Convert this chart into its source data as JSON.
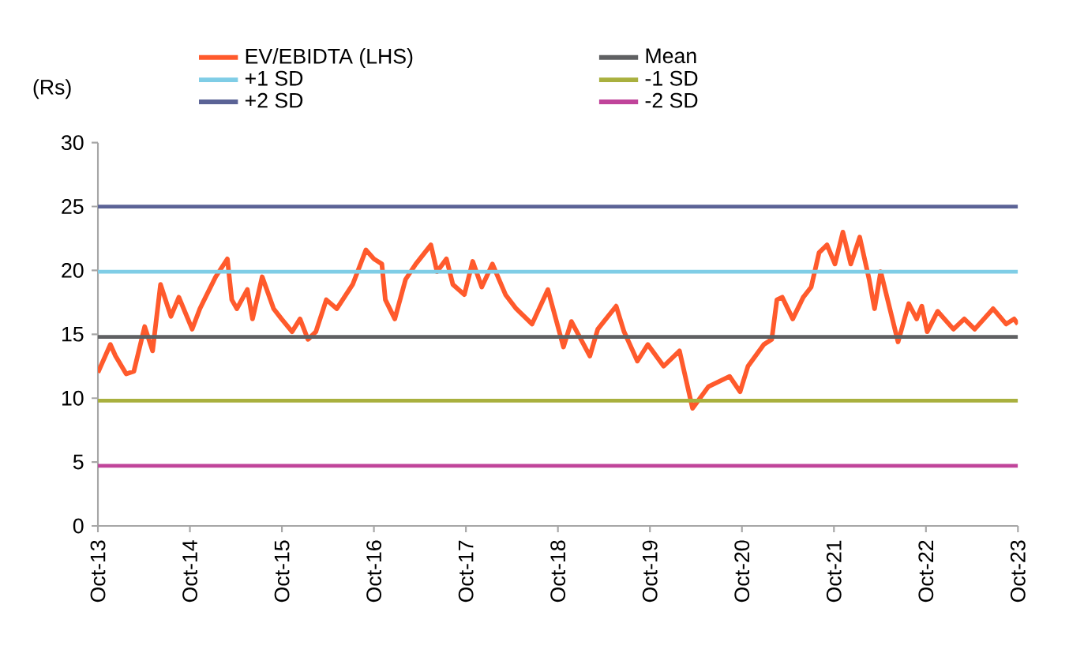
{
  "chart_data": {
    "type": "line",
    "ylabel": "(Rs)",
    "xlim": [
      "2013-10-01",
      "2023-10-01"
    ],
    "xticks": [
      {
        "value": "2013-10",
        "label": "Oct-13"
      },
      {
        "value": "2014-10",
        "label": "Oct-14"
      },
      {
        "value": "2015-10",
        "label": "Oct-15"
      },
      {
        "value": "2016-10",
        "label": "Oct-16"
      },
      {
        "value": "2017-10",
        "label": "Oct-17"
      },
      {
        "value": "2018-10",
        "label": "Oct-18"
      },
      {
        "value": "2019-10",
        "label": "Oct-19"
      },
      {
        "value": "2020-10",
        "label": "Oct-20"
      },
      {
        "value": "2021-10",
        "label": "Oct-21"
      },
      {
        "value": "2022-10",
        "label": "Oct-22"
      },
      {
        "value": "2023-10",
        "label": "Oct-23"
      }
    ],
    "ylim": [
      0,
      30
    ],
    "yticks": [
      0,
      5,
      10,
      15,
      20,
      25,
      30
    ],
    "legend": "top",
    "marker": "none",
    "line_style": "solid",
    "series": [
      {
        "name": "EV/EBIDTA (LHS)",
        "color": "#ff5a2c",
        "x": [
          "2013-10-01",
          "2013-11-20",
          "2013-12-10",
          "2014-01-22",
          "2014-02-22",
          "2014-04-04",
          "2014-05-05",
          "2014-06-06",
          "2014-07-17",
          "2014-08-18",
          "2014-10-10",
          "2014-11-10",
          "2015-01-12",
          "2015-02-28",
          "2015-03-15",
          "2015-04-05",
          "2015-05-16",
          "2015-06-06",
          "2015-07-14",
          "2015-08-29",
          "2015-09-30",
          "2015-11-11",
          "2015-12-12",
          "2016-01-13",
          "2016-02-14",
          "2016-03-25",
          "2016-05-06",
          "2016-07-08",
          "2016-08-30",
          "2016-10-01",
          "2016-11-02",
          "2016-11-16",
          "2016-12-23",
          "2017-02-05",
          "2017-03-15",
          "2017-05-14",
          "2017-06-08",
          "2017-07-15",
          "2017-08-10",
          "2017-09-25",
          "2017-10-28",
          "2017-12-03",
          "2018-01-15",
          "2018-03-06",
          "2018-04-18",
          "2018-06-20",
          "2018-08-22",
          "2018-10-23",
          "2018-11-24",
          "2019-02-06",
          "2019-03-07",
          "2019-05-19",
          "2019-06-20",
          "2019-08-12",
          "2019-09-23",
          "2019-11-25",
          "2020-01-27",
          "2020-03-18",
          "2020-05-20",
          "2020-08-13",
          "2020-09-24",
          "2020-10-25",
          "2020-12-27",
          "2021-01-28",
          "2021-02-18",
          "2021-03-09",
          "2021-04-20",
          "2021-06-01",
          "2021-07-02",
          "2021-08-03",
          "2021-09-04",
          "2021-10-05",
          "2021-11-06",
          "2021-12-07",
          "2022-01-12",
          "2022-02-19",
          "2022-03-10",
          "2022-04-04",
          "2022-06-12",
          "2022-07-24",
          "2022-08-25",
          "2022-09-15",
          "2022-10-06",
          "2022-11-17",
          "2023-01-19",
          "2023-03-01",
          "2023-04-12",
          "2023-06-24",
          "2023-08-15",
          "2023-09-16",
          "2023-10-01"
        ],
        "values": [
          12.0,
          14.2,
          13.3,
          11.9,
          12.1,
          15.6,
          13.7,
          18.9,
          16.4,
          17.9,
          15.4,
          17.0,
          19.5,
          20.9,
          17.7,
          17.0,
          18.5,
          16.2,
          19.5,
          17.0,
          16.2,
          15.2,
          16.2,
          14.6,
          15.2,
          17.7,
          17.0,
          18.9,
          21.6,
          20.9,
          20.5,
          17.7,
          16.2,
          19.3,
          20.5,
          22.0,
          19.9,
          20.9,
          18.9,
          18.1,
          20.7,
          18.7,
          20.5,
          18.1,
          17.0,
          15.8,
          18.5,
          14.0,
          16.0,
          13.3,
          15.4,
          17.2,
          15.2,
          12.9,
          14.2,
          12.5,
          13.7,
          9.2,
          10.9,
          11.7,
          10.5,
          12.5,
          14.2,
          14.6,
          17.7,
          17.9,
          16.2,
          17.9,
          18.7,
          21.4,
          22.0,
          20.5,
          23.0,
          20.5,
          22.6,
          19.3,
          17.0,
          19.9,
          14.4,
          17.4,
          16.2,
          17.2,
          15.2,
          16.8,
          15.4,
          16.2,
          15.4,
          17.0,
          15.8,
          16.2,
          15.8
        ]
      },
      {
        "name": "Mean",
        "color": "#5f6062",
        "x": [
          "2013-10-01",
          "2023-10-01"
        ],
        "values": [
          14.8,
          14.8
        ]
      },
      {
        "name": "+1 SD",
        "color": "#7fcde6",
        "x": [
          "2013-10-01",
          "2023-10-01"
        ],
        "values": [
          19.9,
          19.9
        ]
      },
      {
        "name": "-1 SD",
        "color": "#a9b03e",
        "x": [
          "2013-10-01",
          "2023-10-01"
        ],
        "values": [
          9.8,
          9.8
        ]
      },
      {
        "name": "+2 SD",
        "color": "#5b6396",
        "x": [
          "2013-10-01",
          "2023-10-01"
        ],
        "values": [
          25.0,
          25.0
        ]
      },
      {
        "name": "-2 SD",
        "color": "#c0449a",
        "x": [
          "2013-10-01",
          "2023-10-01"
        ],
        "values": [
          4.7,
          4.7
        ]
      }
    ]
  }
}
